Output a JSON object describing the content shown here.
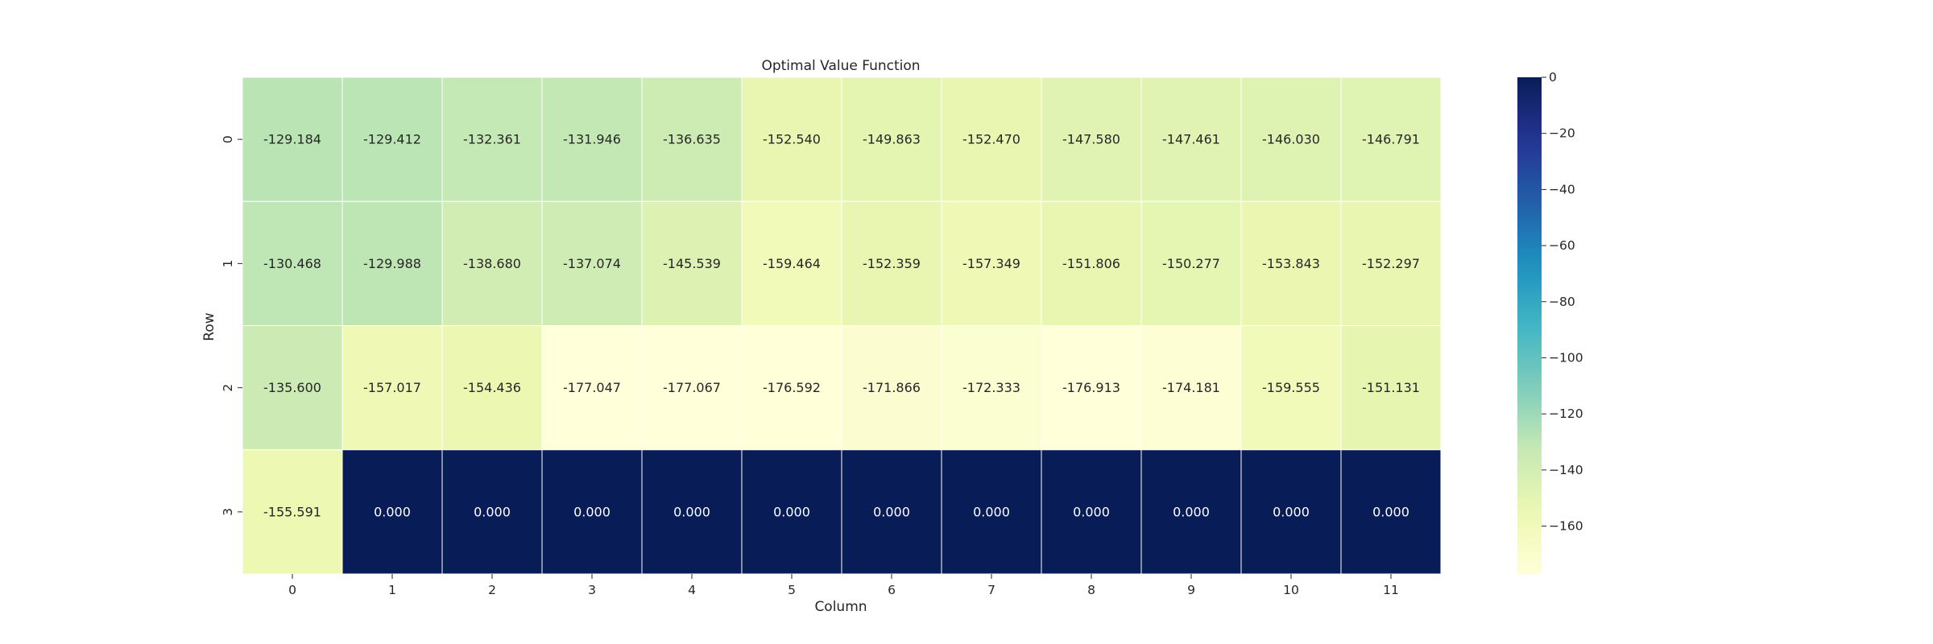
{
  "chart_data": {
    "type": "heatmap",
    "title": "Optimal Value Function",
    "xlabel": "Column",
    "ylabel": "Row",
    "x_categories": [
      "0",
      "1",
      "2",
      "3",
      "4",
      "5",
      "6",
      "7",
      "8",
      "9",
      "10",
      "11"
    ],
    "y_categories": [
      "0",
      "1",
      "2",
      "3"
    ],
    "values": [
      [
        -129.184,
        -129.412,
        -132.361,
        -131.946,
        -136.635,
        -152.54,
        -149.863,
        -152.47,
        -147.58,
        -147.461,
        -146.03,
        -146.791
      ],
      [
        -130.468,
        -129.988,
        -138.68,
        -137.074,
        -145.539,
        -159.464,
        -152.359,
        -157.349,
        -151.806,
        -150.277,
        -153.843,
        -152.297
      ],
      [
        -135.6,
        -157.017,
        -154.436,
        -177.047,
        -177.067,
        -176.592,
        -171.866,
        -172.333,
        -176.913,
        -174.181,
        -159.555,
        -151.131
      ],
      [
        -155.591,
        0.0,
        0.0,
        0.0,
        0.0,
        0.0,
        0.0,
        0.0,
        0.0,
        0.0,
        0.0,
        0.0
      ]
    ],
    "cell_labels": [
      [
        "-129.184",
        "-129.412",
        "-132.361",
        "-131.946",
        "-136.635",
        "-152.540",
        "-149.863",
        "-152.470",
        "-147.580",
        "-147.461",
        "-146.030",
        "-146.791"
      ],
      [
        "-130.468",
        "-129.988",
        "-138.680",
        "-137.074",
        "-145.539",
        "-159.464",
        "-152.359",
        "-157.349",
        "-151.806",
        "-150.277",
        "-153.843",
        "-152.297"
      ],
      [
        "-135.600",
        "-157.017",
        "-154.436",
        "-177.047",
        "-177.067",
        "-176.592",
        "-171.866",
        "-172.333",
        "-176.913",
        "-174.181",
        "-159.555",
        "-151.131"
      ],
      [
        "-155.591",
        "0.000",
        "0.000",
        "0.000",
        "0.000",
        "0.000",
        "0.000",
        "0.000",
        "0.000",
        "0.000",
        "0.000",
        "0.000"
      ]
    ],
    "colormap": "YlGnBu",
    "color_range": [
      -177.067,
      0
    ],
    "colorbar_ticks": [
      0,
      -20,
      -40,
      -60,
      -80,
      -100,
      -120,
      -140,
      -160
    ],
    "colorbar_tick_labels": [
      "0",
      "−20",
      "−40",
      "−60",
      "−80",
      "−100",
      "−120",
      "−140",
      "−160"
    ],
    "grid_lines_color": "#ffffff"
  }
}
